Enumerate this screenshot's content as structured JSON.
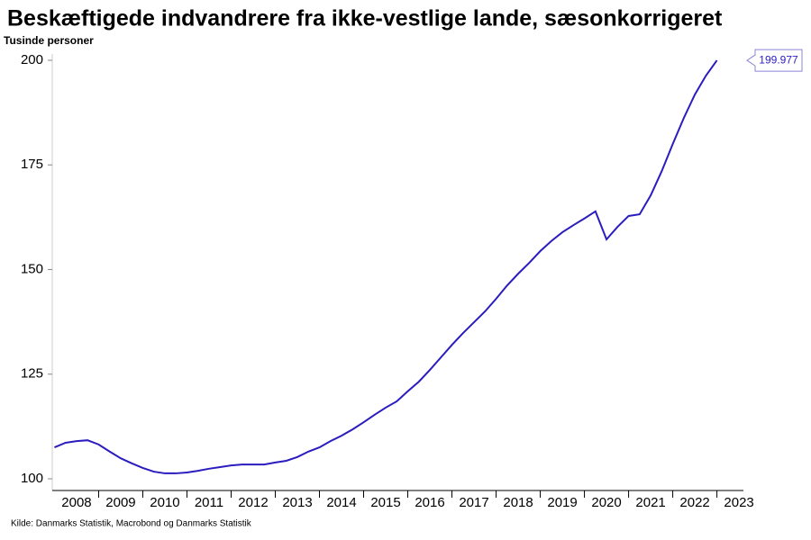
{
  "chart_data": {
    "type": "line",
    "title": "Beskæftigede indvandrere fra ikke-vestlige lande, sæsonkorrigeret",
    "y_label": "Tusinde personer",
    "source": "Kilde: Danmarks Statistik, Macrobond og Danmarks Statistik",
    "x": [
      2008.0,
      2008.25,
      2008.5,
      2008.75,
      2009.0,
      2009.25,
      2009.5,
      2009.75,
      2010.0,
      2010.25,
      2010.5,
      2010.75,
      2011.0,
      2011.25,
      2011.5,
      2011.75,
      2012.0,
      2012.25,
      2012.5,
      2012.75,
      2013.0,
      2013.25,
      2013.5,
      2013.75,
      2014.0,
      2014.25,
      2014.5,
      2014.75,
      2015.0,
      2015.25,
      2015.5,
      2015.75,
      2016.0,
      2016.25,
      2016.5,
      2016.75,
      2017.0,
      2017.25,
      2017.5,
      2017.75,
      2018.0,
      2018.25,
      2018.5,
      2018.75,
      2019.0,
      2019.25,
      2019.5,
      2019.75,
      2020.0,
      2020.25,
      2020.5,
      2020.75,
      2021.0,
      2021.25,
      2021.5,
      2021.75,
      2022.0,
      2022.25,
      2022.5,
      2022.75,
      2023.0
    ],
    "series": [
      {
        "name": "Beskæftigede indvandrere",
        "color": "#2b1cbf",
        "values": [
          107.5,
          108.6,
          109.0,
          109.2,
          108.2,
          106.5,
          104.9,
          103.7,
          102.6,
          101.7,
          101.3,
          101.3,
          101.5,
          101.9,
          102.4,
          102.8,
          103.2,
          103.4,
          103.4,
          103.4,
          103.9,
          104.3,
          105.2,
          106.5,
          107.5,
          109.0,
          110.3,
          111.8,
          113.5,
          115.3,
          117.0,
          118.5,
          120.9,
          123.2,
          126.0,
          129.0,
          132.0,
          134.8,
          137.4,
          140.0,
          143.0,
          146.2,
          149.0,
          151.6,
          154.4,
          156.8,
          158.9,
          160.6,
          162.2,
          163.9,
          157.2,
          160.2,
          162.8,
          163.2,
          167.7,
          173.5,
          180.0,
          186.2,
          191.8,
          196.3,
          199.977
        ]
      }
    ],
    "xlim": [
      2007.95,
      2023.6
    ],
    "xticks": [
      {
        "value": 2008.5,
        "label": "2008"
      },
      {
        "value": 2009.5,
        "label": "2009"
      },
      {
        "value": 2010.5,
        "label": "2010"
      },
      {
        "value": 2011.5,
        "label": "2011"
      },
      {
        "value": 2012.5,
        "label": "2012"
      },
      {
        "value": 2013.5,
        "label": "2013"
      },
      {
        "value": 2014.5,
        "label": "2014"
      },
      {
        "value": 2015.5,
        "label": "2015"
      },
      {
        "value": 2016.5,
        "label": "2016"
      },
      {
        "value": 2017.5,
        "label": "2017"
      },
      {
        "value": 2018.5,
        "label": "2018"
      },
      {
        "value": 2019.5,
        "label": "2019"
      },
      {
        "value": 2020.5,
        "label": "2020"
      },
      {
        "value": 2021.5,
        "label": "2021"
      },
      {
        "value": 2022.5,
        "label": "2022"
      },
      {
        "value": 2023.5,
        "label": "2023"
      }
    ],
    "ylim": [
      97.2,
      201.5
    ],
    "yticks": [
      100,
      125,
      150,
      175,
      200
    ],
    "grid": false
  }
}
